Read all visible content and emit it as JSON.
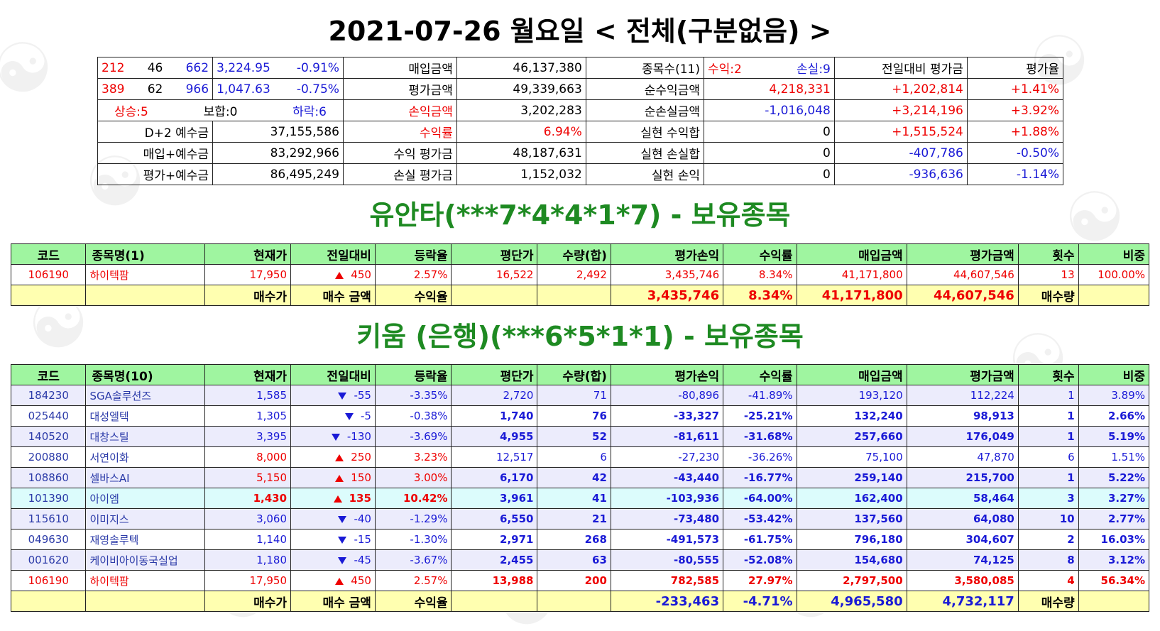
{
  "header": {
    "title": "2021-07-26 월요일 < 전체(구분없음) >"
  },
  "summary": {
    "r1": {
      "a1": "212",
      "a2": "46",
      "a3": "662",
      "idx": "3,224.95",
      "pct": "-0.91%",
      "l1": "매입금액",
      "v1": "46,137,380",
      "l2": "종목수(11)",
      "gain": "수익:2",
      "loss": "손실:9",
      "h4": "전일대비 평가금",
      "h5": "평가율"
    },
    "r2": {
      "a1": "389",
      "a2": "62",
      "a3": "966",
      "idx": "1,047.63",
      "pct": "-0.75%",
      "l1": "평가금액",
      "v1": "49,339,663",
      "l2": "순수익금액",
      "v2": "4,218,331",
      "v3": "+1,202,814",
      "v4": "+1.41%"
    },
    "r3": {
      "up": "상승:5",
      "flat": "보합:0",
      "down": "하락:6",
      "l1": "손익금액",
      "v1": "3,202,283",
      "l2": "순손실금액",
      "v2": "-1,016,048",
      "v3": "+3,214,196",
      "v4": "+3.92%"
    },
    "r4": {
      "k": "D+2 예수금",
      "kv": "37,155,586",
      "l1": "수익률",
      "v1": "6.94%",
      "l2": "실현 수익합",
      "v2": "0",
      "v3": "+1,515,524",
      "v4": "+1.88%"
    },
    "r5": {
      "k": "매입+예수금",
      "kv": "83,292,966",
      "l1": "수익 평가금",
      "v1": "48,187,631",
      "l2": "실현 손실합",
      "v2": "0",
      "v3": "-407,786",
      "v4": "-0.50%"
    },
    "r6": {
      "k": "평가+예수금",
      "kv": "86,495,249",
      "l1": "손실 평가금",
      "v1": "1,152,032",
      "l2": "실현 손익",
      "v2": "0",
      "v3": "-936,636",
      "v4": "-1.14%"
    }
  },
  "yuanta": {
    "title": "유안타(***7*4*4*1*7) - 보유종목",
    "headers": [
      "코드",
      "종목명(1)",
      "현재가",
      "전일대비",
      "등락율",
      "평단가",
      "수량(합)",
      "평가손익",
      "수익률",
      "매입금액",
      "평가금액",
      "횟수",
      "비중"
    ],
    "rows": [
      {
        "code": "106190",
        "name": "하이텍팜",
        "price": "17,950",
        "dir": "up",
        "change": "450",
        "rate": "2.57%",
        "avg": "16,522",
        "qty": "2,492",
        "pl": "3,435,746",
        "ret": "8.34%",
        "buy": "41,171,800",
        "eval": "44,607,546",
        "cnt": "13",
        "weight": "100.00%",
        "style": "wh",
        "tone": "red",
        "bold": false
      }
    ],
    "footer": {
      "buy_price": "매수가",
      "buy_amount": "매수 금액",
      "yield": "수익율",
      "pl": "3,435,746",
      "ret": "8.34%",
      "buy": "41,171,800",
      "eval": "44,607,546",
      "qty_label": "매수량"
    }
  },
  "kiwoom": {
    "title": "키움 (은행)(***6*5*1*1) - 보유종목",
    "headers": [
      "코드",
      "종목명(10)",
      "현재가",
      "전일대비",
      "등락율",
      "평단가",
      "수량(합)",
      "평가손익",
      "수익률",
      "매입금액",
      "평가금액",
      "횟수",
      "비중"
    ],
    "rows": [
      {
        "code": "184230",
        "name": "SGA솔루션즈",
        "price": "1,585",
        "dir": "down",
        "change": "-55",
        "rate": "-3.35%",
        "avg": "2,720",
        "qty": "71",
        "pl": "-80,896",
        "ret": "-41.89%",
        "buy": "193,120",
        "eval": "112,224",
        "cnt": "1",
        "weight": "3.89%",
        "style": "lav",
        "tone": "blue",
        "bold": false
      },
      {
        "code": "025440",
        "name": "대성엘텍",
        "price": "1,305",
        "dir": "down",
        "change": "-5",
        "rate": "-0.38%",
        "avg": "1,740",
        "qty": "76",
        "pl": "-33,327",
        "ret": "-25.21%",
        "buy": "132,240",
        "eval": "98,913",
        "cnt": "1",
        "weight": "2.66%",
        "style": "wh",
        "tone": "blue",
        "bold": true
      },
      {
        "code": "140520",
        "name": "대창스틸",
        "price": "3,395",
        "dir": "down",
        "change": "-130",
        "rate": "-3.69%",
        "avg": "4,955",
        "qty": "52",
        "pl": "-81,611",
        "ret": "-31.68%",
        "buy": "257,660",
        "eval": "176,049",
        "cnt": "1",
        "weight": "5.19%",
        "style": "lav",
        "tone": "blue",
        "bold": true
      },
      {
        "code": "200880",
        "name": "서연이화",
        "price": "8,000",
        "dir": "up",
        "change": "250",
        "rate": "3.23%",
        "avg": "12,517",
        "qty": "6",
        "pl": "-27,230",
        "ret": "-36.26%",
        "buy": "75,100",
        "eval": "47,870",
        "cnt": "6",
        "weight": "1.51%",
        "style": "wh",
        "tone": "mixed",
        "bold": false
      },
      {
        "code": "108860",
        "name": "셀바스AI",
        "price": "5,150",
        "dir": "up",
        "change": "150",
        "rate": "3.00%",
        "avg": "6,170",
        "qty": "42",
        "pl": "-43,440",
        "ret": "-16.77%",
        "buy": "259,140",
        "eval": "215,700",
        "cnt": "1",
        "weight": "5.22%",
        "style": "lav",
        "tone": "mixed",
        "bold": true
      },
      {
        "code": "101390",
        "name": "아이엠",
        "price": "1,430",
        "dir": "up",
        "change": "135",
        "rate": "10.42%",
        "avg": "3,961",
        "qty": "41",
        "pl": "-103,936",
        "ret": "-64.00%",
        "buy": "162,400",
        "eval": "58,464",
        "cnt": "3",
        "weight": "3.27%",
        "style": "cy",
        "tone": "mixed",
        "bold": true
      },
      {
        "code": "115610",
        "name": "이미지스",
        "price": "3,060",
        "dir": "down",
        "change": "-40",
        "rate": "-1.29%",
        "avg": "6,550",
        "qty": "21",
        "pl": "-73,480",
        "ret": "-53.42%",
        "buy": "137,560",
        "eval": "64,080",
        "cnt": "10",
        "weight": "2.77%",
        "style": "lav",
        "tone": "blue",
        "bold": true
      },
      {
        "code": "049630",
        "name": "재영솔루텍",
        "price": "1,140",
        "dir": "down",
        "change": "-15",
        "rate": "-1.30%",
        "avg": "2,971",
        "qty": "268",
        "pl": "-491,573",
        "ret": "-61.75%",
        "buy": "796,180",
        "eval": "304,607",
        "cnt": "2",
        "weight": "16.03%",
        "style": "wh",
        "tone": "blue",
        "bold": true
      },
      {
        "code": "001620",
        "name": "케이비아이동국실업",
        "price": "1,180",
        "dir": "down",
        "change": "-45",
        "rate": "-3.67%",
        "avg": "2,455",
        "qty": "63",
        "pl": "-80,555",
        "ret": "-52.08%",
        "buy": "154,680",
        "eval": "74,125",
        "cnt": "8",
        "weight": "3.12%",
        "style": "lav",
        "tone": "blue",
        "bold": true
      },
      {
        "code": "106190",
        "name": "하이텍팜",
        "price": "17,950",
        "dir": "up",
        "change": "450",
        "rate": "2.57%",
        "avg": "13,988",
        "qty": "200",
        "pl": "782,585",
        "ret": "27.97%",
        "buy": "2,797,500",
        "eval": "3,580,085",
        "cnt": "4",
        "weight": "56.34%",
        "style": "wh",
        "tone": "red",
        "bold": true
      }
    ],
    "footer": {
      "buy_price": "매수가",
      "buy_amount": "매수 금액",
      "yield": "수익율",
      "pl": "-233,463",
      "ret": "-4.71%",
      "buy": "4,965,580",
      "eval": "4,732,117",
      "qty_label": "매수량"
    }
  },
  "colors": {
    "gain": "#ee0000",
    "loss": "#1a1ad6",
    "title_green": "#1e8a22",
    "header_green": "#9ff5a0",
    "footer_yellow": "#ffffb0"
  }
}
